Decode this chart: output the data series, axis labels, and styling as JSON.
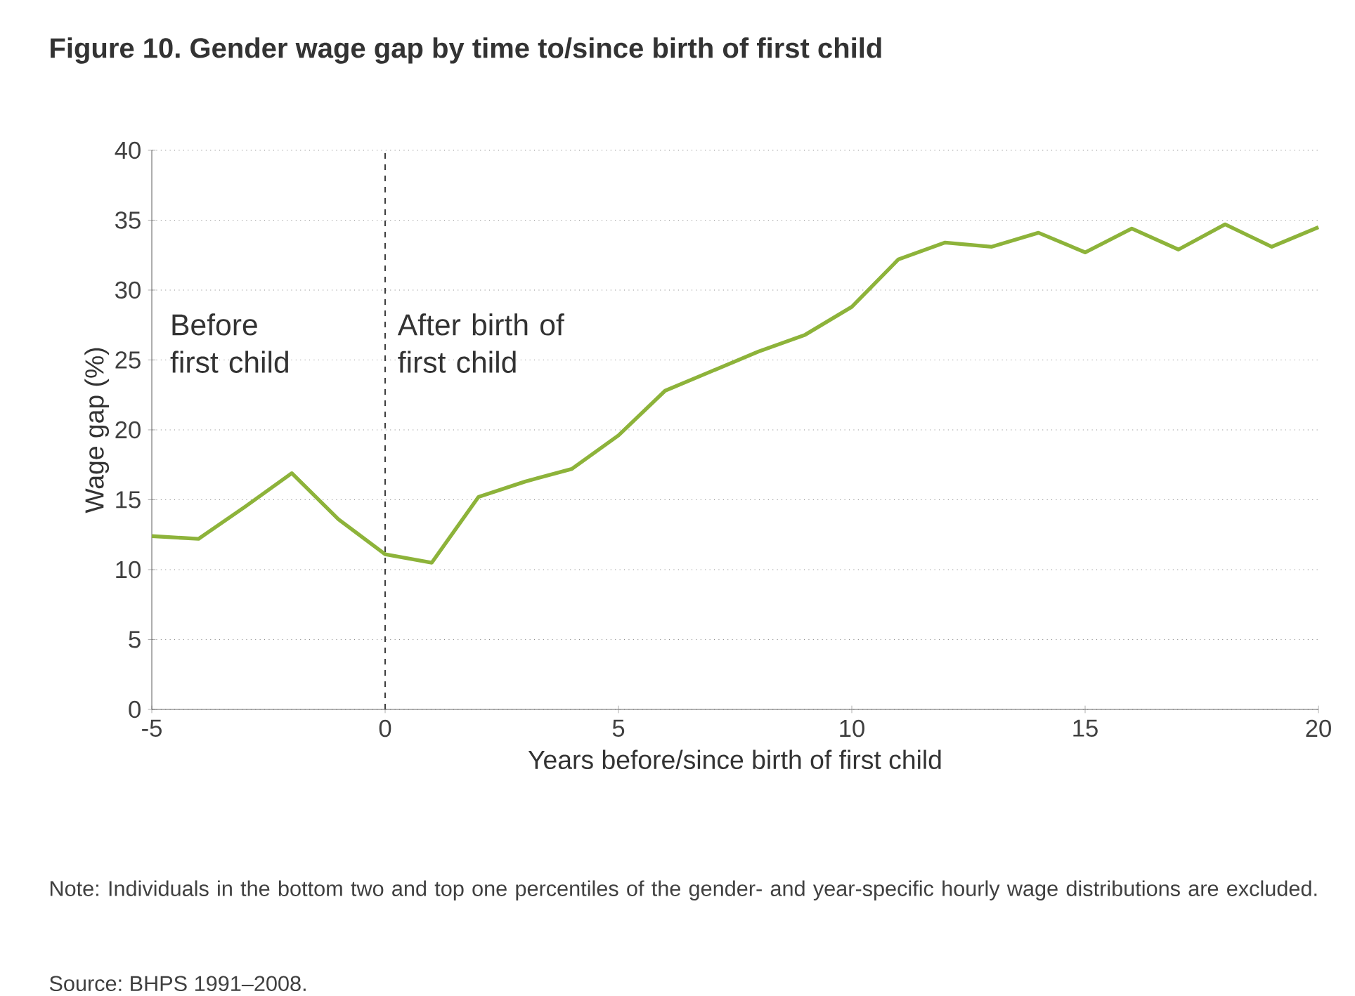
{
  "chart_data": {
    "type": "line",
    "title": "Figure 10. Gender wage gap by time to/since birth of first child",
    "xlabel": "Years before/since birth of first child",
    "ylabel": "Wage gap (%)",
    "x": [
      -5,
      -4,
      -3,
      -2,
      -1,
      0,
      1,
      2,
      3,
      4,
      5,
      6,
      7,
      8,
      9,
      10,
      11,
      12,
      13,
      14,
      15,
      16,
      17,
      18,
      19,
      20
    ],
    "series": [
      {
        "color": "#8db33a",
        "values": [
          12.4,
          12.2,
          14.5,
          16.9,
          13.6,
          11.1,
          10.5,
          15.2,
          16.3,
          17.2,
          19.6,
          22.8,
          24.2,
          25.6,
          26.8,
          28.8,
          32.2,
          33.4,
          33.1,
          34.1,
          32.7,
          34.4,
          32.9,
          34.7,
          33.1,
          34.5
        ]
      }
    ],
    "xlim": [
      -5,
      20
    ],
    "xticks": [
      -5,
      0,
      5,
      10,
      15,
      20
    ],
    "ylim": [
      0,
      40
    ],
    "yticks": [
      0,
      5,
      10,
      15,
      20,
      25,
      30,
      35,
      40
    ],
    "grid": "y",
    "marker": "none",
    "line_style": "solid",
    "ref_lines": [
      {
        "axis": "x",
        "value": 0,
        "color": "#404040",
        "line_style": "dashed"
      }
    ],
    "annotations": [
      "Before first child",
      "After birth of first child",
      "Note: Individuals in the bottom two and top one percentiles of the gender- and year-specific hourly wage distributions are excluded.",
      "Source: BHPS 1991–2008."
    ]
  }
}
